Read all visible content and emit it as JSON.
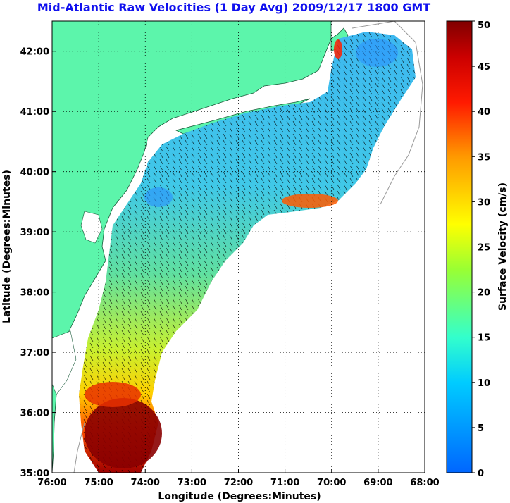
{
  "title": "Mid-Atlantic Raw Velocities (1 Day Avg) 2009/12/17 1800 GMT",
  "colors": {
    "land": "#5cf5ab",
    "ocean_bg": "#ffffff",
    "vector": "#000000",
    "title": "#1010ee"
  },
  "chart_data": {
    "type": "heatmap",
    "xlabel": "Longitude (Degrees:Minutes)",
    "ylabel": "Latitude (Degrees:Minutes)",
    "x_ticks": [
      "76:00",
      "75:00",
      "74:00",
      "73:00",
      "72:00",
      "71:00",
      "70:00",
      "69:00",
      "68:00"
    ],
    "y_ticks": [
      "42:00",
      "41:00",
      "40:00",
      "39:00",
      "38:00",
      "37:00",
      "36:00",
      "35:00"
    ],
    "xlim": [
      -76,
      -68
    ],
    "ylim": [
      35,
      42.5
    ],
    "grid": true,
    "colorbar": {
      "label": "Surface Velocity (cm/s)",
      "min": 0,
      "max": 50,
      "ticks": [
        "0",
        "5",
        "10",
        "15",
        "20",
        "25",
        "30",
        "35",
        "40",
        "45",
        "50"
      ]
    }
  }
}
